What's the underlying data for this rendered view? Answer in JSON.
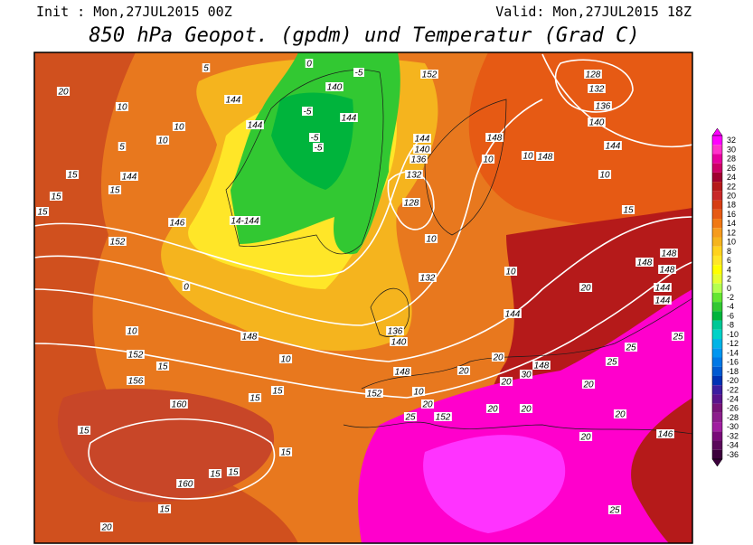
{
  "header": {
    "init": "Init : Mon,27JUL2015 00Z",
    "valid": "Valid: Mon,27JUL2015 18Z",
    "title": "850 hPa Geopot. (gpdm) und Temperatur (Grad C)"
  },
  "colorbar": {
    "labels": [
      32,
      30,
      28,
      26,
      24,
      22,
      20,
      18,
      16,
      14,
      12,
      10,
      8,
      6,
      4,
      2,
      0,
      -2,
      -4,
      -6,
      -8,
      -10,
      -12,
      -14,
      -16,
      -18,
      -20,
      -22,
      -24,
      -26,
      -28,
      -30,
      -32,
      -34,
      -36
    ]
  },
  "map": {
    "contour_labels": [
      "5",
      "-5",
      "0",
      "140",
      "144",
      "-5",
      "144",
      "144",
      "-5",
      "-5",
      "152",
      "128",
      "132",
      "136",
      "140",
      "144",
      "20",
      "10",
      "10",
      "10",
      "5",
      "15",
      "144",
      "15",
      "15",
      "15",
      "146",
      "14-144",
      "152",
      "144",
      "140",
      "136",
      "132",
      "128",
      "148",
      "10",
      "148",
      "10",
      "10",
      "15",
      "10",
      "10",
      "132",
      "148",
      "148",
      "148",
      "20",
      "144",
      "144",
      "144",
      "0",
      "10",
      "148",
      "136",
      "140",
      "10",
      "152",
      "15",
      "156",
      "148",
      "20",
      "20",
      "148",
      "30",
      "20",
      "152",
      "10",
      "20",
      "15",
      "15",
      "160",
      "15",
      "25",
      "152",
      "20",
      "20",
      "20",
      "25",
      "25",
      "20",
      "20",
      "15",
      "160",
      "15",
      "15",
      "15",
      "20",
      "25",
      "146",
      "25"
    ]
  }
}
